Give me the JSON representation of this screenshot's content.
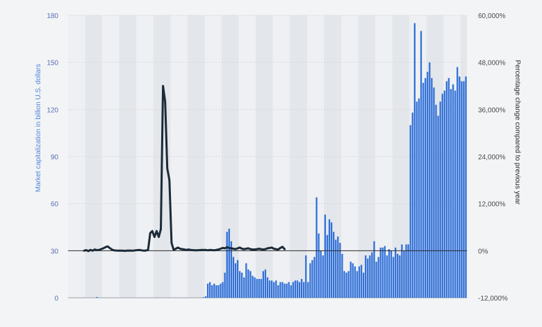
{
  "chart_data": {
    "type": "bar+line",
    "ylabel_left": "Market capitalization in billion U.S. dollars",
    "ylabel_right": "Percentage change compared to previous year",
    "yticks_left": [
      "0",
      "30",
      "60",
      "90",
      "120",
      "150",
      "180"
    ],
    "yticks_right": [
      "-12,000%",
      "0%",
      "12,000%",
      "24,000%",
      "36,000%",
      "48,000%",
      "60,000%"
    ],
    "ylim_left": [
      0,
      180
    ],
    "ylim_right": [
      -12000,
      60000
    ],
    "grid": true,
    "series": [
      {
        "kind": "bar",
        "color": "#2f6fd8",
        "values": [
          0,
          0,
          0,
          0,
          0,
          0,
          0,
          0,
          0,
          0,
          0,
          0,
          0,
          0.5,
          0,
          0,
          0,
          0,
          0,
          0,
          0,
          0,
          0,
          0,
          0,
          0,
          0,
          0,
          0,
          0,
          0,
          0,
          0,
          0,
          0,
          0,
          0,
          0,
          0,
          0,
          0,
          0,
          0,
          0,
          0,
          0,
          0,
          0,
          0,
          0,
          0,
          0,
          0,
          0,
          0,
          0,
          0,
          0,
          0,
          0,
          0,
          0,
          0,
          0.3,
          1,
          9,
          10,
          8,
          9,
          8,
          8,
          9,
          10,
          16,
          42,
          44,
          36,
          26,
          22,
          24,
          17,
          16,
          13,
          22,
          18,
          17,
          14,
          13,
          12,
          12,
          12,
          17,
          18,
          13,
          11,
          11,
          10,
          11,
          8,
          10,
          10,
          9,
          9,
          10,
          8,
          10,
          11,
          11,
          10,
          12,
          10,
          27,
          10,
          22,
          24,
          26,
          64,
          41,
          30,
          27,
          53,
          40,
          50,
          48,
          42,
          37,
          39,
          35,
          28,
          17,
          16,
          17,
          23,
          22,
          20,
          17,
          20,
          21,
          16,
          27,
          25,
          27,
          29,
          36,
          23,
          26,
          32,
          32,
          33,
          27,
          31,
          30,
          26,
          32,
          28,
          27,
          34,
          30,
          34,
          34,
          110,
          118,
          175,
          125,
          127,
          170,
          137,
          140,
          144,
          150,
          140,
          134,
          123,
          116,
          125,
          130,
          132,
          138,
          140,
          133,
          136,
          132,
          147,
          141,
          138,
          138,
          141
        ]
      },
      {
        "kind": "line",
        "color": "#1b2a38",
        "values": [
          0,
          150,
          -100,
          200,
          0,
          300,
          150,
          200,
          400,
          600,
          900,
          1100,
          700,
          300,
          100,
          50,
          0,
          0,
          0,
          -50,
          0,
          50,
          0,
          0,
          100,
          150,
          200,
          100,
          0,
          50,
          200,
          4500,
          5000,
          3500,
          5000,
          3500,
          5500,
          42000,
          38000,
          21000,
          18000,
          2000,
          200,
          500,
          800,
          500,
          400,
          300,
          200,
          300,
          200,
          150,
          100,
          100,
          150,
          200,
          200,
          200,
          100,
          200,
          150,
          100,
          200,
          300,
          500,
          700,
          600,
          900,
          700,
          600,
          500,
          400,
          600,
          800,
          500,
          400,
          500,
          600,
          400,
          300,
          300,
          400,
          500,
          400,
          300,
          400,
          600,
          700,
          800,
          500,
          400,
          300,
          700,
          1000,
          400
        ]
      }
    ]
  }
}
